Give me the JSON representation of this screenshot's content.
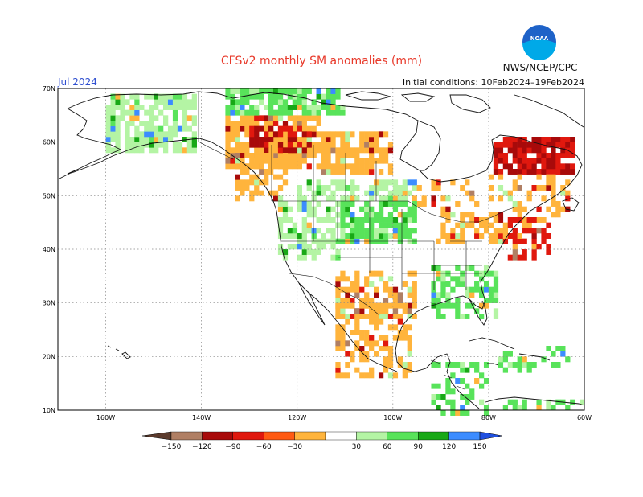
{
  "title": "CFSv2 monthly SM anomalies (mm)",
  "month": "Jul 2024",
  "initial_conditions": "Initial conditions: 10Feb2024–19Feb2024",
  "agency": "NWS/NCEP/CPC",
  "logo_text": "NOAA",
  "map": {
    "projection": "equirectangular",
    "lon_range": [
      -170,
      -60
    ],
    "lat_range": [
      10,
      70
    ],
    "lon_ticks": [
      {
        "value": -160,
        "label": "160W"
      },
      {
        "value": -140,
        "label": "140W"
      },
      {
        "value": -120,
        "label": "120W"
      },
      {
        "value": -100,
        "label": "100W"
      },
      {
        "value": -80,
        "label": "80W"
      },
      {
        "value": -60,
        "label": "60W"
      }
    ],
    "lat_ticks": [
      {
        "value": 70,
        "label": "70N"
      },
      {
        "value": 60,
        "label": "60N"
      },
      {
        "value": 50,
        "label": "50N"
      },
      {
        "value": 40,
        "label": "40N"
      },
      {
        "value": 30,
        "label": "30N"
      },
      {
        "value": 20,
        "label": "20N"
      },
      {
        "value": 10,
        "label": "10N"
      }
    ],
    "grid": true,
    "regions": [
      {
        "name": "alaska-interior",
        "lon": [
          -160,
          -141
        ],
        "lat": [
          58,
          69
        ],
        "dominant": 30,
        "density": 0.7
      },
      {
        "name": "yukon-nwt-south",
        "lon": [
          -135,
          -115
        ],
        "lat": [
          55,
          65
        ],
        "dominant": -30,
        "density": 0.85
      },
      {
        "name": "nwt-hotspot",
        "lon": [
          -130,
          -117
        ],
        "lat": [
          58,
          63
        ],
        "dominant": -90,
        "density": 0.6
      },
      {
        "name": "arctic-coast",
        "lon": [
          -135,
          -110
        ],
        "lat": [
          65,
          70
        ],
        "dominant": 60,
        "density": 0.75
      },
      {
        "name": "alberta-sask",
        "lon": [
          -115,
          -100
        ],
        "lat": [
          54,
          62
        ],
        "dominant": -30,
        "density": 0.7
      },
      {
        "name": "bc-coast",
        "lon": [
          -133,
          -122
        ],
        "lat": [
          49,
          58
        ],
        "dominant": -30,
        "density": 0.55
      },
      {
        "name": "prairie-canada",
        "lon": [
          -120,
          -95
        ],
        "lat": [
          49,
          53
        ],
        "dominant": 30,
        "density": 0.55
      },
      {
        "name": "ontario-north",
        "lon": [
          -95,
          -82
        ],
        "lat": [
          47,
          53
        ],
        "dominant": -30,
        "density": 0.35
      },
      {
        "name": "quebec-labrador",
        "lon": [
          -79,
          -62
        ],
        "lat": [
          54,
          61
        ],
        "dominant": -90,
        "density": 0.85
      },
      {
        "name": "quebec-south",
        "lon": [
          -80,
          -63
        ],
        "lat": [
          45,
          54
        ],
        "dominant": -30,
        "density": 0.4
      },
      {
        "name": "northern-plains",
        "lon": [
          -112,
          -95
        ],
        "lat": [
          41,
          49
        ],
        "dominant": 60,
        "density": 0.7
      },
      {
        "name": "great-lakes",
        "lon": [
          -92,
          -76
        ],
        "lat": [
          41,
          47
        ],
        "dominant": -30,
        "density": 0.55
      },
      {
        "name": "northeast-us",
        "lon": [
          -76,
          -67
        ],
        "lat": [
          38,
          46
        ],
        "dominant": -60,
        "density": 0.6
      },
      {
        "name": "pacific-nw-us",
        "lon": [
          -124,
          -111
        ],
        "lat": [
          38,
          49
        ],
        "dominant": 30,
        "density": 0.55
      },
      {
        "name": "southwest-us",
        "lon": [
          -112,
          -95
        ],
        "lat": [
          27,
          36
        ],
        "dominant": -30,
        "density": 0.6
      },
      {
        "name": "southeast-us",
        "lon": [
          -92,
          -78
        ],
        "lat": [
          27,
          37
        ],
        "dominant": 60,
        "density": 0.55
      },
      {
        "name": "mexico",
        "lon": [
          -112,
          -96
        ],
        "lat": [
          16,
          30
        ],
        "dominant": -30,
        "density": 0.5
      },
      {
        "name": "central-america",
        "lon": [
          -92,
          -80
        ],
        "lat": [
          9,
          19
        ],
        "dominant": 60,
        "density": 0.35
      },
      {
        "name": "caribbean",
        "lon": [
          -78,
          -63
        ],
        "lat": [
          17,
          22
        ],
        "dominant": 60,
        "density": 0.25
      },
      {
        "name": "south-america-north",
        "lon": [
          -78,
          -60
        ],
        "lat": [
          10,
          12
        ],
        "dominant": 60,
        "density": 0.5
      }
    ]
  },
  "colorbar": {
    "labels": [
      "−150",
      "−120",
      "−90",
      "−60",
      "−30",
      "30",
      "60",
      "90",
      "120",
      "150"
    ],
    "colors": [
      "#5b3a2c",
      "#b07f64",
      "#a80a0a",
      "#e0180e",
      "#ff5a12",
      "#ffb43c",
      "#ffffff",
      "#b4f4a4",
      "#58e35a",
      "#18a816",
      "#3c8cff",
      "#2050e0"
    ],
    "min_color": "#5b3a2c",
    "max_color": "#2050e0"
  },
  "colors": {
    "title": "#e8392a",
    "month": "#2f4fd0",
    "logo_blue": "#1e62c8",
    "logo_sky": "#00a9e8"
  }
}
